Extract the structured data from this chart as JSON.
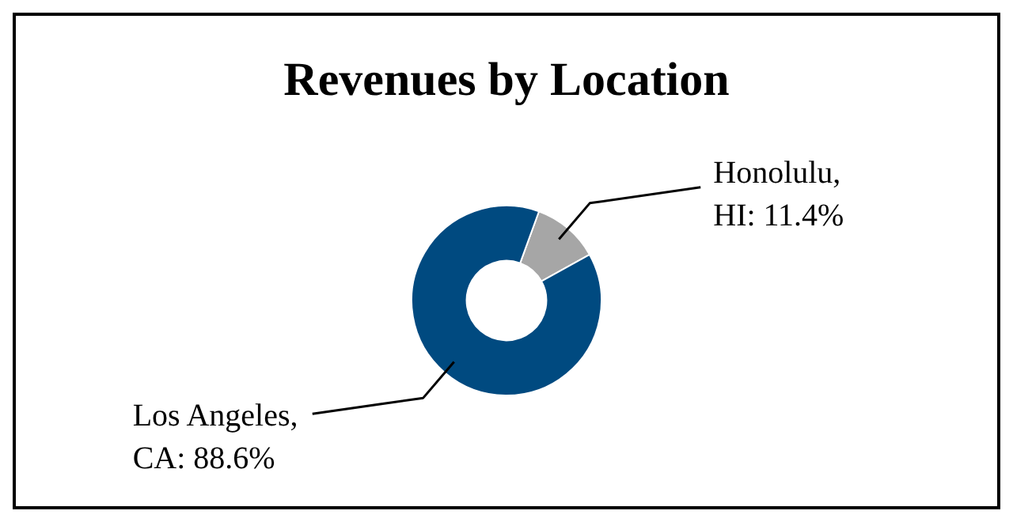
{
  "chart_data": {
    "type": "donut",
    "title": "Revenues by Location",
    "categories": [
      "Honolulu, HI",
      "Los Angeles, CA"
    ],
    "values": [
      11.4,
      88.6
    ],
    "value_labels": [
      "11.4%",
      "88.6%"
    ],
    "colors": [
      "#a6a6a6",
      "#004a80"
    ]
  }
}
